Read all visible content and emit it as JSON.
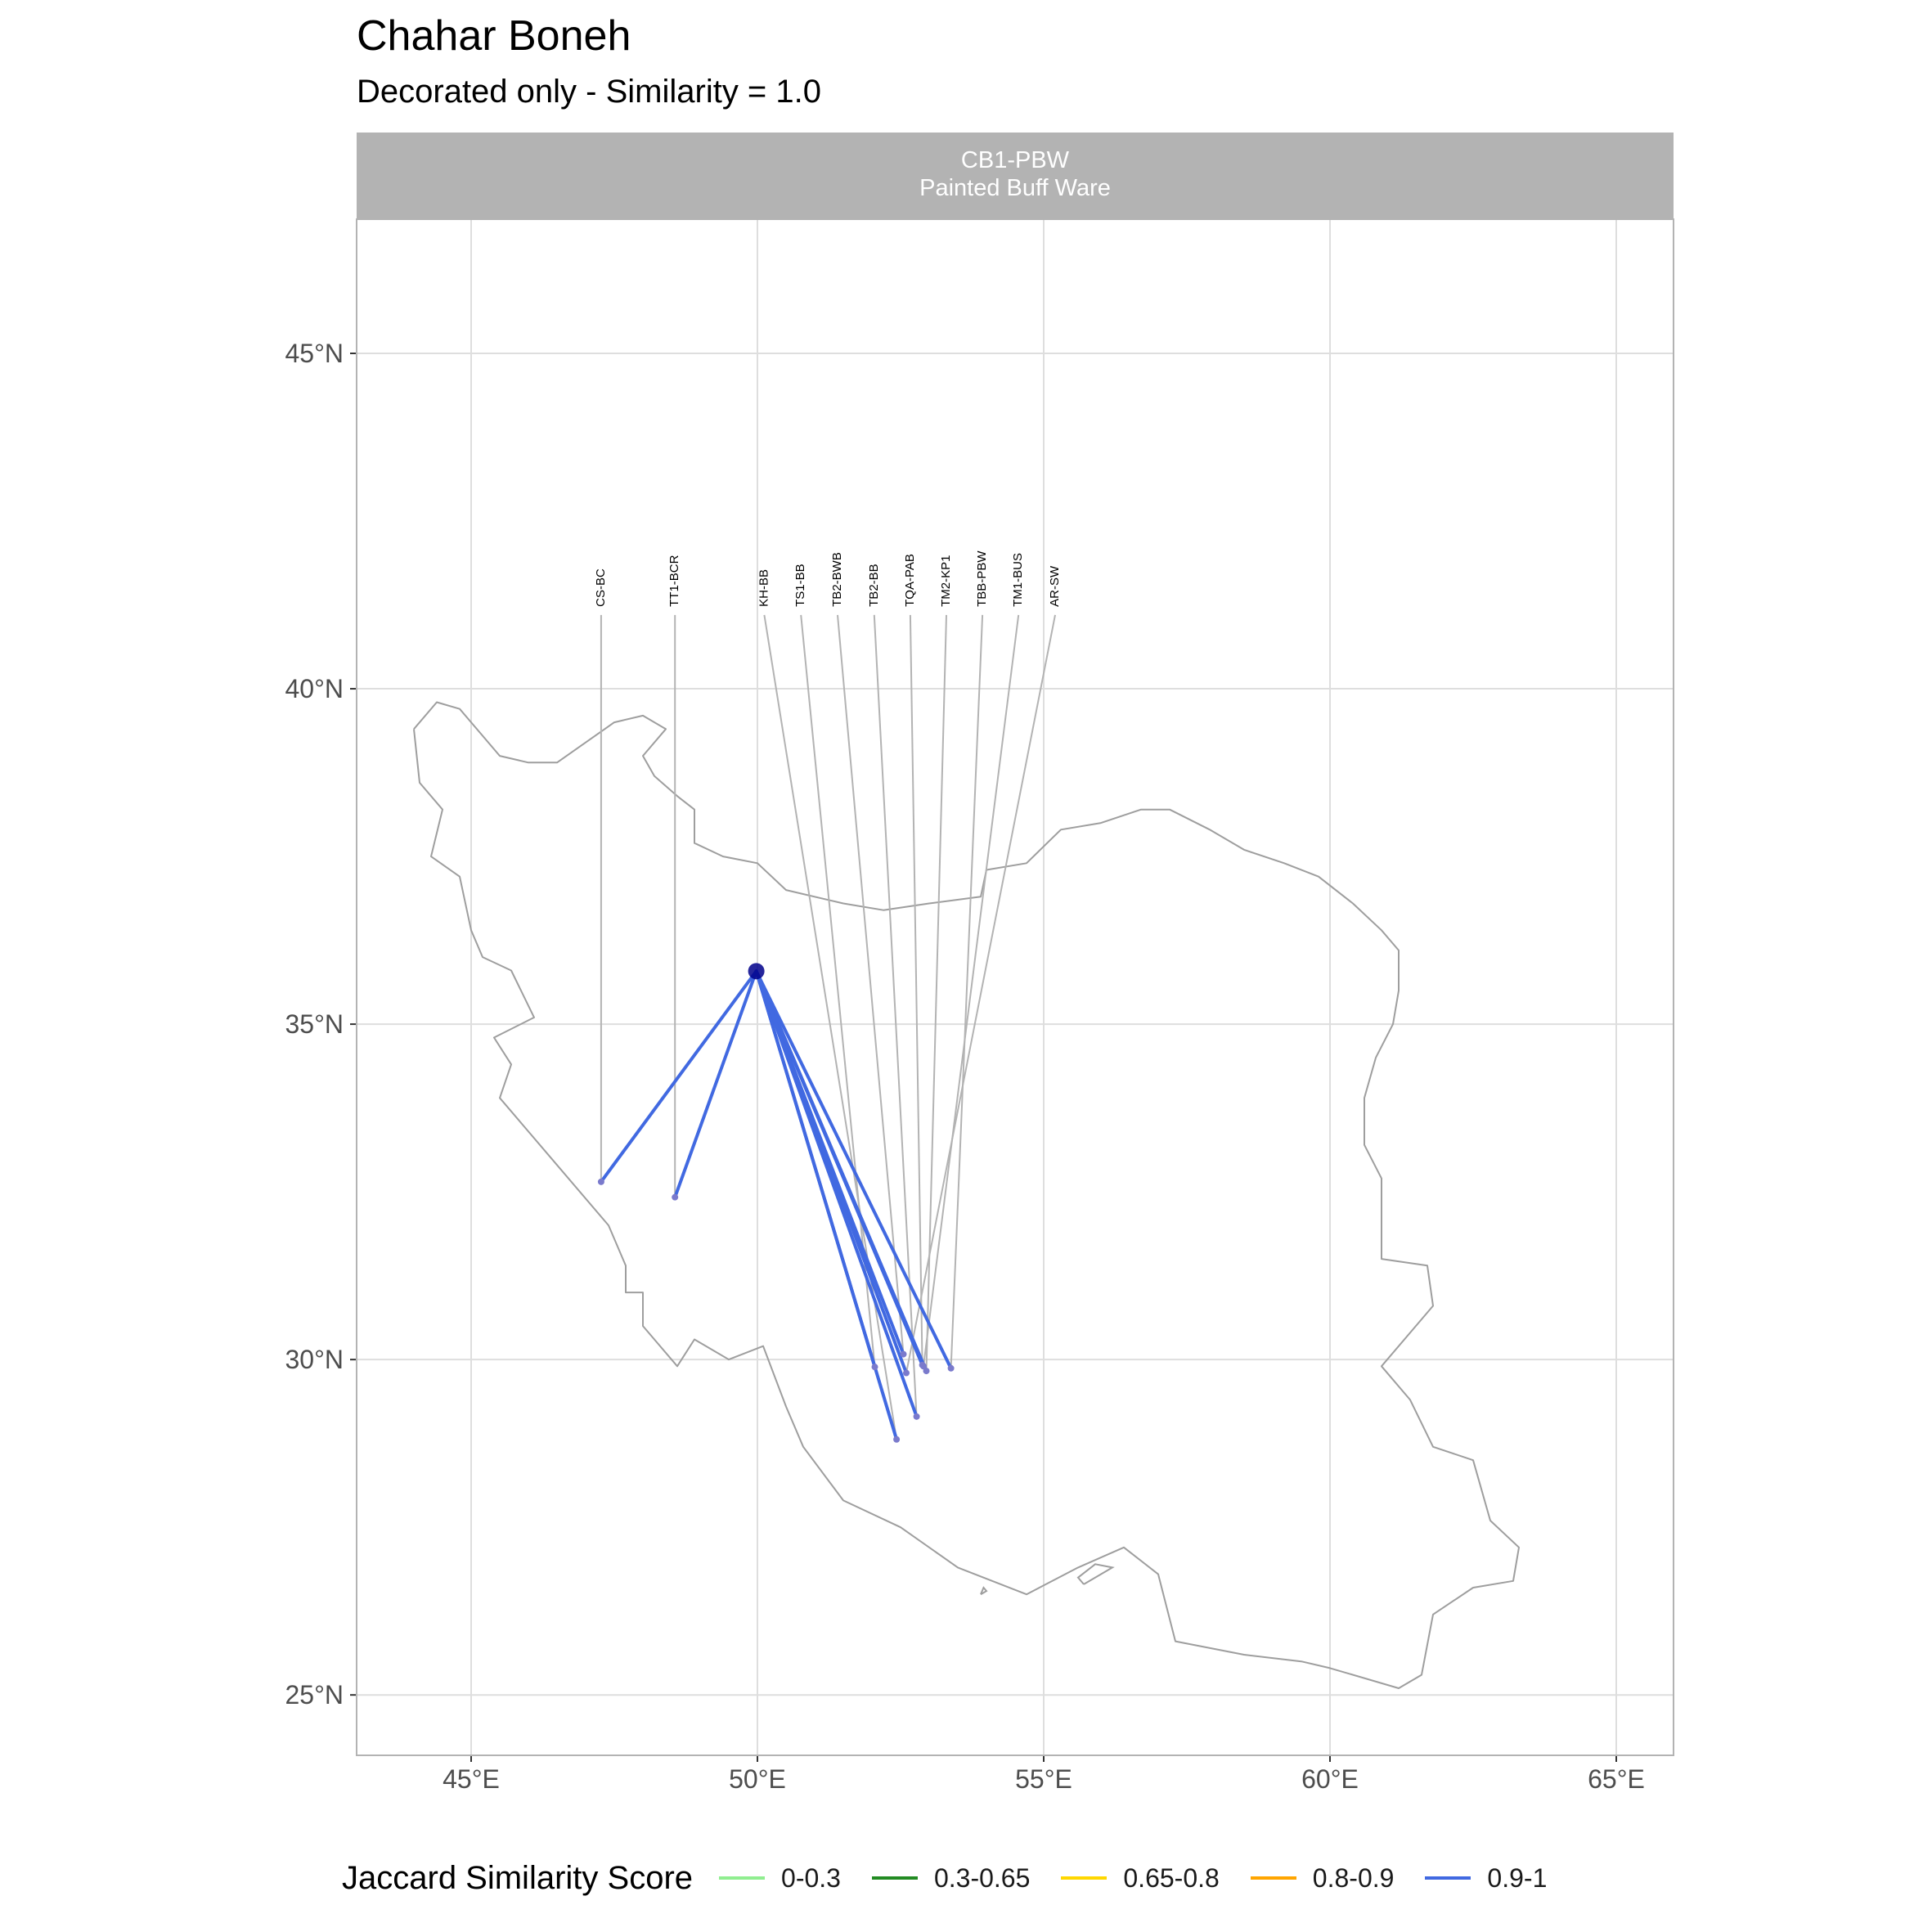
{
  "title": "Chahar Boneh",
  "subtitle": "Decorated only - Similarity = 1.0",
  "panel": {
    "code": "CB1-PBW",
    "ware": "Painted Buff Ware"
  },
  "axes": {
    "x_ticks": [
      {
        "value": 45,
        "label": "45°E"
      },
      {
        "value": 50,
        "label": "50°E"
      },
      {
        "value": 55,
        "label": "55°E"
      },
      {
        "value": 60,
        "label": "60°E"
      },
      {
        "value": 65,
        "label": "65°E"
      }
    ],
    "y_ticks": [
      {
        "value": 25,
        "label": "25°N"
      },
      {
        "value": 30,
        "label": "30°N"
      },
      {
        "value": 35,
        "label": "35°N"
      },
      {
        "value": 40,
        "label": "40°N"
      },
      {
        "value": 45,
        "label": "45°N"
      }
    ],
    "x_range": [
      43.0,
      66.0
    ],
    "y_range": [
      24.1,
      47.0
    ]
  },
  "origin": {
    "lon": 49.98,
    "lat": 35.79
  },
  "sites": [
    {
      "code": "CS-BC",
      "lon": 47.27,
      "lat": 32.65,
      "score": "0.9-1"
    },
    {
      "code": "TT1-BCR",
      "lon": 48.56,
      "lat": 32.42,
      "score": "0.9-1"
    },
    {
      "code": "KH-BB",
      "lon": 52.43,
      "lat": 28.81,
      "score": "0.9-1"
    },
    {
      "code": "TS1-BB",
      "lon": 52.05,
      "lat": 29.89,
      "score": "0.9-1"
    },
    {
      "code": "TB2-BWB",
      "lon": 52.55,
      "lat": 30.08,
      "score": "0.9-1"
    },
    {
      "code": "TB2-BB",
      "lon": 52.78,
      "lat": 29.15,
      "score": "0.9-1"
    },
    {
      "code": "TQA-PAB",
      "lon": 52.88,
      "lat": 29.92,
      "score": "0.9-1"
    },
    {
      "code": "TM2-KP1",
      "lon": 52.95,
      "lat": 29.83,
      "score": "0.9-1"
    },
    {
      "code": "TBB-PBW",
      "lon": 53.38,
      "lat": 29.87,
      "score": "0.9-1"
    },
    {
      "code": "TM1-BUS",
      "lon": 52.9,
      "lat": 29.9,
      "score": "0.9-1"
    },
    {
      "code": "AR-SW",
      "lon": 52.6,
      "lat": 29.8,
      "score": "0.9-1"
    }
  ],
  "labels": [
    {
      "code": "CS-BC",
      "lon": 47.27
    },
    {
      "code": "TT1-BCR",
      "lon": 48.56
    },
    {
      "code": "KH-BB",
      "lon": 50.12
    },
    {
      "code": "TS1-BB",
      "lon": 50.76
    },
    {
      "code": "TB2-BWB",
      "lon": 51.4
    },
    {
      "code": "TB2-BB",
      "lon": 52.04
    },
    {
      "code": "TQA-PAB",
      "lon": 52.67
    },
    {
      "code": "TM2-KP1",
      "lon": 53.3
    },
    {
      "code": "TBB-PBW",
      "lon": 53.93
    },
    {
      "code": "TM1-BUS",
      "lon": 54.56
    },
    {
      "code": "AR-SW",
      "lon": 55.2
    }
  ],
  "label_lat": 41.1,
  "legend": {
    "title": "Jaccard Similarity Score",
    "items": [
      {
        "label": "0-0.3",
        "color": "#90ee90"
      },
      {
        "label": "0.3-0.65",
        "color": "#228b22"
      },
      {
        "label": "0.65-0.8",
        "color": "#ffd700"
      },
      {
        "label": "0.8-0.9",
        "color": "#ffa500"
      },
      {
        "label": "0.9-1",
        "color": "#4169e1"
      }
    ]
  },
  "colors": {
    "link": "#4169e1",
    "origin": "#00008b",
    "leader": "#b3b3b3",
    "border": "#9e9e9e",
    "grid": "#dedede",
    "strip": "#b3b3b3"
  },
  "country_outline": [
    [
      44.0,
      39.4
    ],
    [
      44.4,
      39.8
    ],
    [
      44.8,
      39.7
    ],
    [
      45.0,
      39.5
    ],
    [
      45.5,
      39.0
    ],
    [
      46.0,
      38.9
    ],
    [
      46.5,
      38.9
    ],
    [
      47.0,
      39.2
    ],
    [
      47.5,
      39.5
    ],
    [
      48.0,
      39.6
    ],
    [
      48.4,
      39.4
    ],
    [
      48.0,
      39.0
    ],
    [
      48.2,
      38.7
    ],
    [
      48.6,
      38.4
    ],
    [
      48.9,
      38.2
    ],
    [
      48.9,
      37.7
    ],
    [
      49.4,
      37.5
    ],
    [
      50.0,
      37.4
    ],
    [
      50.5,
      37.0
    ],
    [
      51.5,
      36.8
    ],
    [
      52.2,
      36.7
    ],
    [
      53.0,
      36.8
    ],
    [
      53.9,
      36.9
    ],
    [
      54.0,
      37.3
    ],
    [
      54.7,
      37.4
    ],
    [
      55.3,
      37.9
    ],
    [
      56.0,
      38.0
    ],
    [
      56.7,
      38.2
    ],
    [
      57.2,
      38.2
    ],
    [
      57.9,
      37.9
    ],
    [
      58.5,
      37.6
    ],
    [
      59.2,
      37.4
    ],
    [
      59.8,
      37.2
    ],
    [
      60.4,
      36.8
    ],
    [
      60.9,
      36.4
    ],
    [
      61.2,
      36.1
    ],
    [
      61.2,
      35.5
    ],
    [
      61.1,
      35.0
    ],
    [
      60.8,
      34.5
    ],
    [
      60.6,
      33.9
    ],
    [
      60.6,
      33.2
    ],
    [
      60.9,
      32.7
    ],
    [
      60.9,
      32.1
    ],
    [
      60.9,
      31.5
    ],
    [
      61.7,
      31.4
    ],
    [
      61.8,
      30.8
    ],
    [
      60.9,
      29.9
    ],
    [
      61.4,
      29.4
    ],
    [
      61.8,
      28.7
    ],
    [
      62.5,
      28.5
    ],
    [
      62.8,
      27.6
    ],
    [
      63.3,
      27.2
    ],
    [
      63.2,
      26.7
    ],
    [
      62.5,
      26.6
    ],
    [
      61.8,
      26.2
    ],
    [
      61.6,
      25.3
    ],
    [
      61.2,
      25.1
    ],
    [
      60.0,
      25.4
    ],
    [
      59.5,
      25.5
    ],
    [
      58.5,
      25.6
    ],
    [
      57.3,
      25.8
    ],
    [
      57.0,
      26.8
    ],
    [
      56.4,
      27.2
    ],
    [
      55.6,
      26.9
    ],
    [
      54.7,
      26.5
    ],
    [
      53.5,
      26.9
    ],
    [
      52.5,
      27.5
    ],
    [
      51.5,
      27.9
    ],
    [
      50.8,
      28.7
    ],
    [
      50.5,
      29.3
    ],
    [
      50.1,
      30.2
    ],
    [
      49.5,
      30.0
    ],
    [
      48.9,
      30.3
    ],
    [
      48.6,
      29.9
    ],
    [
      48.0,
      30.5
    ],
    [
      48.0,
      31.0
    ],
    [
      47.7,
      31.0
    ],
    [
      47.7,
      31.4
    ],
    [
      47.4,
      32.0
    ],
    [
      46.5,
      32.9
    ],
    [
      45.9,
      33.5
    ],
    [
      45.5,
      33.9
    ],
    [
      45.7,
      34.4
    ],
    [
      45.4,
      34.8
    ],
    [
      46.1,
      35.1
    ],
    [
      45.7,
      35.8
    ],
    [
      45.2,
      36.0
    ],
    [
      45.0,
      36.4
    ],
    [
      44.8,
      37.2
    ],
    [
      44.3,
      37.5
    ],
    [
      44.5,
      38.2
    ],
    [
      44.1,
      38.6
    ],
    [
      44.0,
      39.4
    ]
  ],
  "islands": [
    [
      [
        55.7,
        26.65
      ],
      [
        56.2,
        26.9
      ],
      [
        55.9,
        26.95
      ],
      [
        55.6,
        26.75
      ],
      [
        55.7,
        26.65
      ]
    ],
    [
      [
        53.9,
        26.5
      ],
      [
        54.0,
        26.55
      ],
      [
        53.95,
        26.6
      ],
      [
        53.9,
        26.5
      ]
    ]
  ]
}
